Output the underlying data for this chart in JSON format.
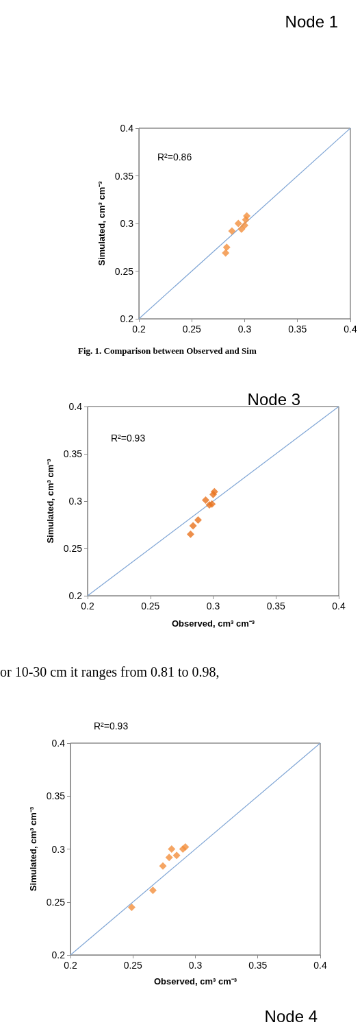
{
  "chart_data": [
    {
      "type": "scatter",
      "title": "Node 1",
      "ylabel": "Simulated, cm³ cm⁻³",
      "annotations": [
        "R²=0.86",
        "Fig. 1. Comparison between Observed and Sim"
      ],
      "xlim": [
        0.2,
        0.4
      ],
      "ylim": [
        0.2,
        0.4
      ],
      "xticks": [
        0.2,
        0.25,
        0.3,
        0.35,
        0.4
      ],
      "yticks": [
        0.2,
        0.25,
        0.3,
        0.35,
        0.4
      ],
      "grid": false,
      "series": [
        {
          "marker": "diamond",
          "color": "#f28e3c",
          "x": [
            0.282,
            0.283,
            0.288,
            0.294,
            0.297,
            0.3,
            0.301,
            0.302
          ],
          "values": [
            0.269,
            0.275,
            0.292,
            0.3,
            0.294,
            0.298,
            0.304,
            0.308
          ]
        },
        {
          "type": "line",
          "color": "#7fa5d5",
          "x": [
            0.2,
            0.4
          ],
          "values": [
            0.2,
            0.4
          ]
        }
      ]
    },
    {
      "type": "scatter",
      "title": "Node 3",
      "xlabel": "Observed, cm³ cm⁻³",
      "ylabel": "Simulated, cm³ cm⁻³",
      "annotations": [
        "R²=0.93"
      ],
      "xlim": [
        0.2,
        0.4
      ],
      "ylim": [
        0.2,
        0.4
      ],
      "xticks": [
        0.2,
        0.25,
        0.3,
        0.35,
        0.4
      ],
      "yticks": [
        0.2,
        0.25,
        0.3,
        0.35,
        0.4
      ],
      "grid": false,
      "series": [
        {
          "marker": "diamond",
          "color": "#e8731e",
          "x": [
            0.282,
            0.284,
            0.288,
            0.294,
            0.297,
            0.299,
            0.3,
            0.301
          ],
          "values": [
            0.265,
            0.274,
            0.28,
            0.301,
            0.296,
            0.297,
            0.307,
            0.31
          ]
        },
        {
          "type": "line",
          "color": "#7fa5d5",
          "x": [
            0.2,
            0.4
          ],
          "values": [
            0.2,
            0.4
          ]
        }
      ]
    },
    {
      "type": "scatter",
      "title": "Node 4",
      "xlabel": "Observed, cm³ cm⁻³",
      "ylabel": "Simulated, cm³ cm⁻³",
      "annotations": [
        "or 10-30 cm it ranges from 0.81 to 0.98,",
        "R²=0.93"
      ],
      "xlim": [
        0.2,
        0.4
      ],
      "ylim": [
        0.2,
        0.4
      ],
      "xticks": [
        0.2,
        0.25,
        0.3,
        0.35,
        0.4
      ],
      "yticks": [
        0.2,
        0.25,
        0.3,
        0.35,
        0.4
      ],
      "grid": false,
      "series": [
        {
          "marker": "diamond",
          "color": "#f28e3c",
          "x": [
            0.249,
            0.266,
            0.274,
            0.279,
            0.281,
            0.285,
            0.29,
            0.292
          ],
          "values": [
            0.245,
            0.261,
            0.284,
            0.292,
            0.3,
            0.294,
            0.3,
            0.302
          ]
        },
        {
          "type": "line",
          "color": "#7fa5d5",
          "x": [
            0.2,
            0.4
          ],
          "values": [
            0.2,
            0.4
          ]
        }
      ]
    }
  ]
}
